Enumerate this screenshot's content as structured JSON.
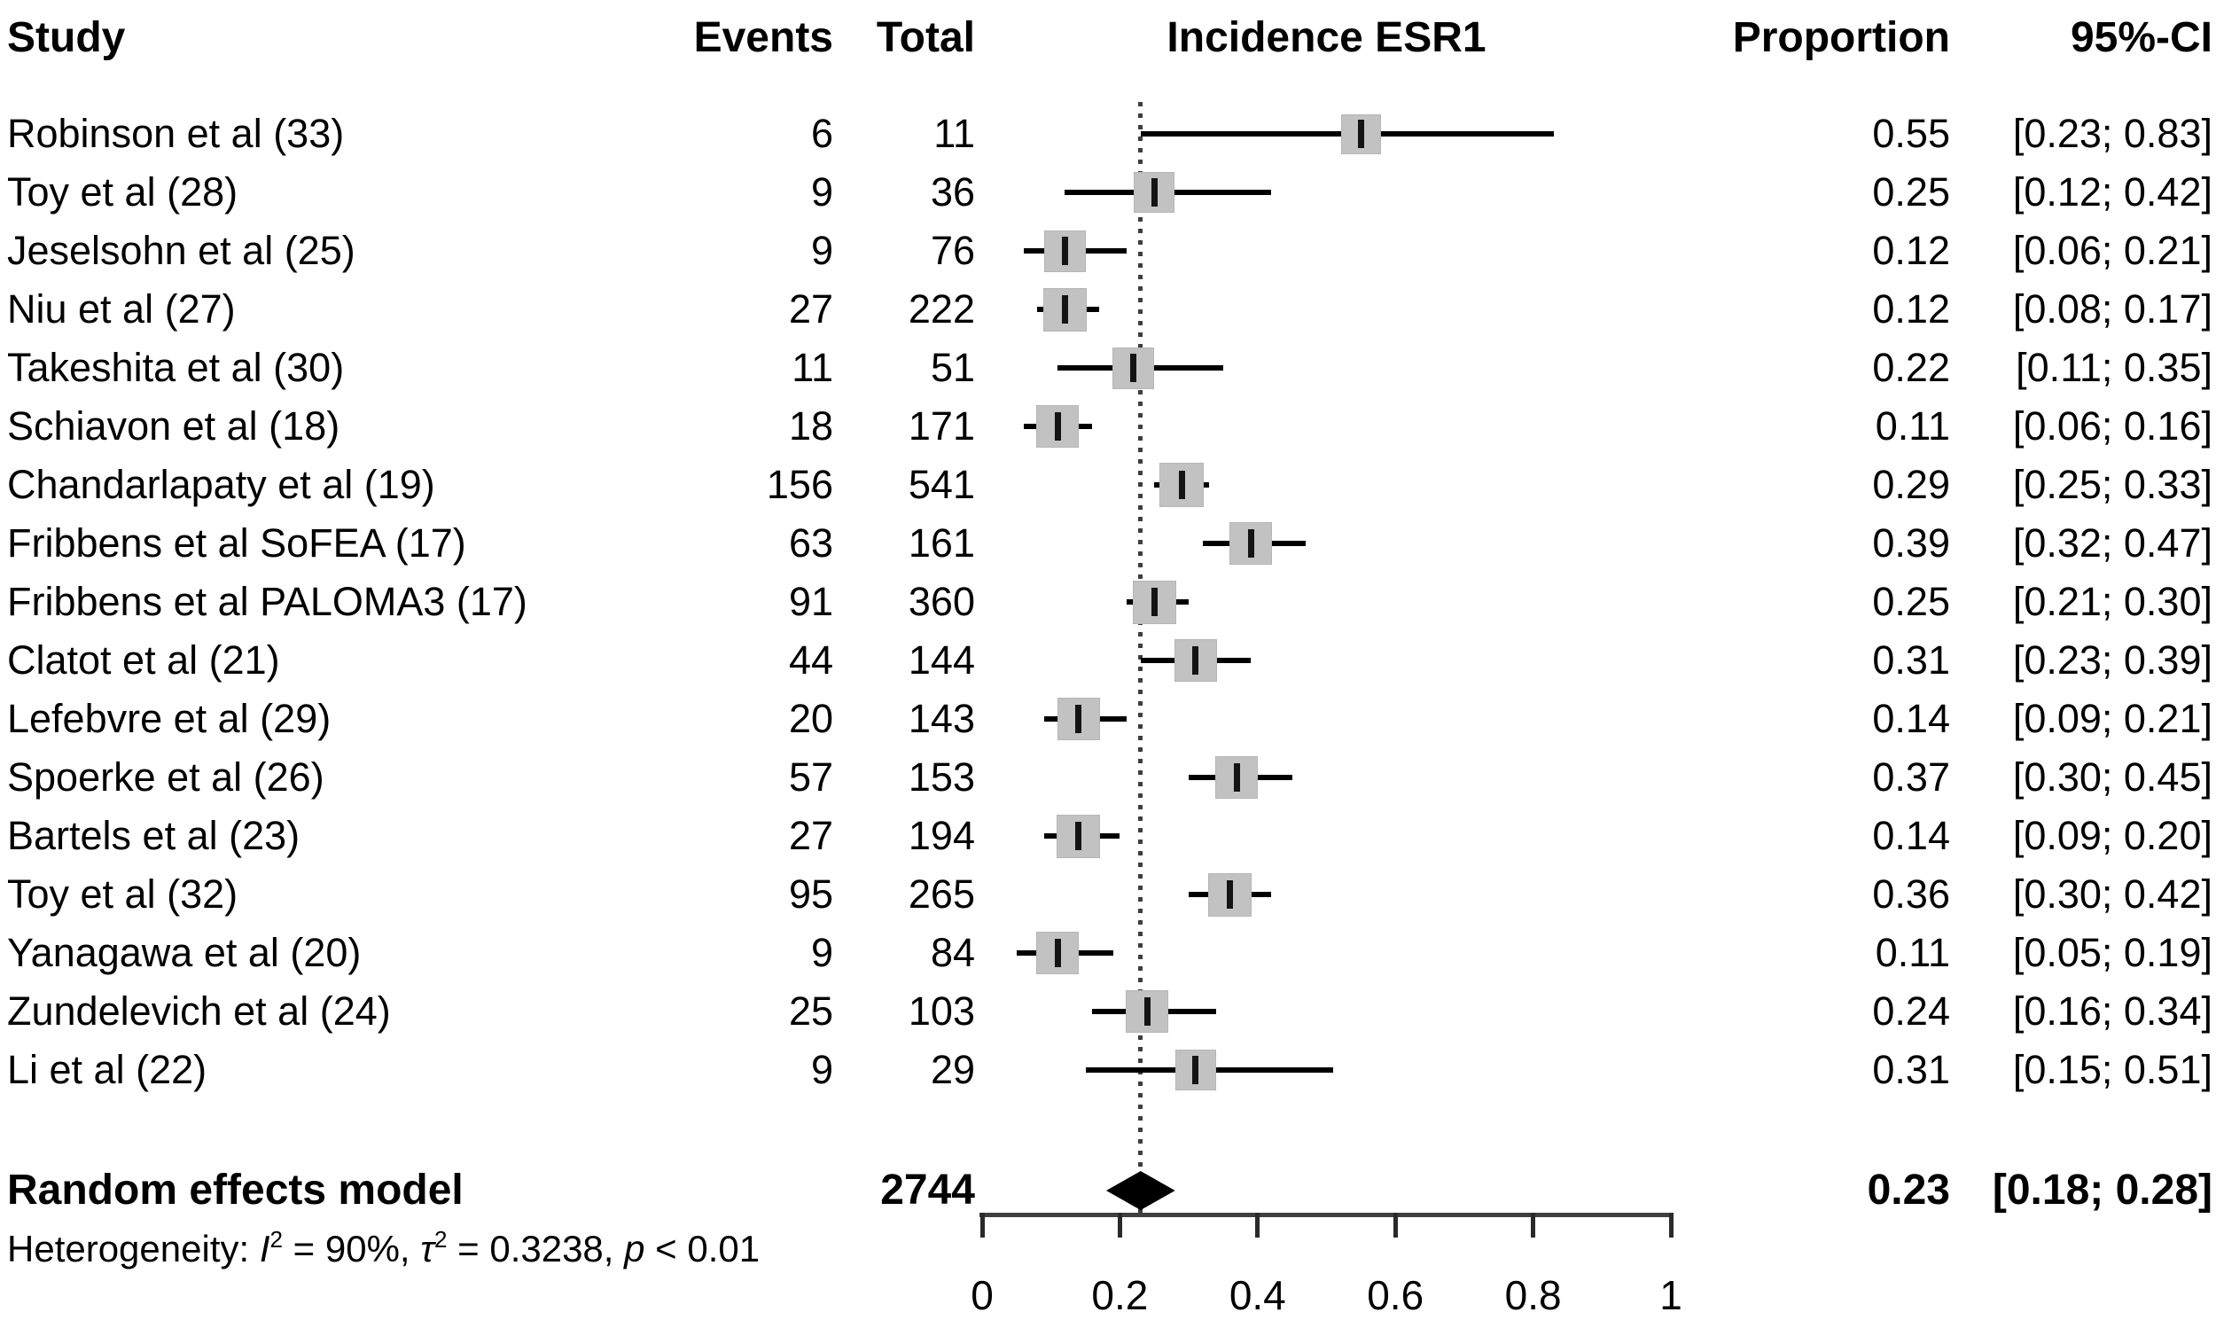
{
  "chart_data": {
    "type": "forest",
    "title": "Incidence ESR1",
    "columns": {
      "study": "Study",
      "events": "Events",
      "total": "Total",
      "plot": "Incidence ESR1",
      "proportion": "Proportion",
      "ci": "95%-CI"
    },
    "xaxis": {
      "xlim": [
        0,
        1
      ],
      "tick_values": [
        0,
        0.2,
        0.4,
        0.6,
        0.8,
        1
      ],
      "tick_labels": [
        "0",
        "0.2",
        "0.4",
        "0.6",
        "0.8",
        "1"
      ]
    },
    "reference_line_value": 0.23,
    "studies": [
      {
        "name": "Robinson et al (33)",
        "events": 6,
        "total": 11,
        "proportion": 0.55,
        "ci_low": 0.23,
        "ci_high": 0.83,
        "proportion_label": "0.55",
        "ci_label": "[0.23; 0.83]"
      },
      {
        "name": "Toy et al (28)",
        "events": 9,
        "total": 36,
        "proportion": 0.25,
        "ci_low": 0.12,
        "ci_high": 0.42,
        "proportion_label": "0.25",
        "ci_label": "[0.12; 0.42]"
      },
      {
        "name": "Jeselsohn et al (25)",
        "events": 9,
        "total": 76,
        "proportion": 0.12,
        "ci_low": 0.06,
        "ci_high": 0.21,
        "proportion_label": "0.12",
        "ci_label": "[0.06; 0.21]"
      },
      {
        "name": "Niu et al (27)",
        "events": 27,
        "total": 222,
        "proportion": 0.12,
        "ci_low": 0.08,
        "ci_high": 0.17,
        "proportion_label": "0.12",
        "ci_label": "[0.08; 0.17]"
      },
      {
        "name": "Takeshita et al (30)",
        "events": 11,
        "total": 51,
        "proportion": 0.22,
        "ci_low": 0.11,
        "ci_high": 0.35,
        "proportion_label": "0.22",
        "ci_label": "[0.11; 0.35]"
      },
      {
        "name": "Schiavon et al (18)",
        "events": 18,
        "total": 171,
        "proportion": 0.11,
        "ci_low": 0.06,
        "ci_high": 0.16,
        "proportion_label": "0.11",
        "ci_label": "[0.06; 0.16]"
      },
      {
        "name": "Chandarlapaty et al (19)",
        "events": 156,
        "total": 541,
        "proportion": 0.29,
        "ci_low": 0.25,
        "ci_high": 0.33,
        "proportion_label": "0.29",
        "ci_label": "[0.25; 0.33]"
      },
      {
        "name": "Fribbens et al SoFEA (17)",
        "events": 63,
        "total": 161,
        "proportion": 0.39,
        "ci_low": 0.32,
        "ci_high": 0.47,
        "proportion_label": "0.39",
        "ci_label": "[0.32; 0.47]"
      },
      {
        "name": "Fribbens et al PALOMA3 (17)",
        "events": 91,
        "total": 360,
        "proportion": 0.25,
        "ci_low": 0.21,
        "ci_high": 0.3,
        "proportion_label": "0.25",
        "ci_label": "[0.21; 0.30]"
      },
      {
        "name": "Clatot et al (21)",
        "events": 44,
        "total": 144,
        "proportion": 0.31,
        "ci_low": 0.23,
        "ci_high": 0.39,
        "proportion_label": "0.31",
        "ci_label": "[0.23; 0.39]"
      },
      {
        "name": "Lefebvre et al (29)",
        "events": 20,
        "total": 143,
        "proportion": 0.14,
        "ci_low": 0.09,
        "ci_high": 0.21,
        "proportion_label": "0.14",
        "ci_label": "[0.09; 0.21]"
      },
      {
        "name": "Spoerke et al (26)",
        "events": 57,
        "total": 153,
        "proportion": 0.37,
        "ci_low": 0.3,
        "ci_high": 0.45,
        "proportion_label": "0.37",
        "ci_label": "[0.30; 0.45]"
      },
      {
        "name": "Bartels et al (23)",
        "events": 27,
        "total": 194,
        "proportion": 0.14,
        "ci_low": 0.09,
        "ci_high": 0.2,
        "proportion_label": "0.14",
        "ci_label": "[0.09; 0.20]"
      },
      {
        "name": "Toy et al (32)",
        "events": 95,
        "total": 265,
        "proportion": 0.36,
        "ci_low": 0.3,
        "ci_high": 0.42,
        "proportion_label": "0.36",
        "ci_label": "[0.30; 0.42]"
      },
      {
        "name": "Yanagawa et al (20)",
        "events": 9,
        "total": 84,
        "proportion": 0.11,
        "ci_low": 0.05,
        "ci_high": 0.19,
        "proportion_label": "0.11",
        "ci_label": "[0.05; 0.19]"
      },
      {
        "name": "Zundelevich et al (24)",
        "events": 25,
        "total": 103,
        "proportion": 0.24,
        "ci_low": 0.16,
        "ci_high": 0.34,
        "proportion_label": "0.24",
        "ci_label": "[0.16; 0.34]"
      },
      {
        "name": "Li et al (22)",
        "events": 9,
        "total": 29,
        "proportion": 0.31,
        "ci_low": 0.15,
        "ci_high": 0.51,
        "proportion_label": "0.31",
        "ci_label": "[0.15; 0.51]"
      }
    ],
    "summary": {
      "name": "Random effects model",
      "total": "2744",
      "proportion": 0.23,
      "ci_low": 0.18,
      "ci_high": 0.28,
      "proportion_label": "0.23",
      "ci_label": "[0.18; 0.28]"
    },
    "heterogeneity": {
      "label": "Heterogeneity: ",
      "i_symbol": "I",
      "i_sup": "2",
      "i_text": " = 90%, ",
      "tau_symbol": "τ",
      "tau_sup": "2",
      "tau_text": " = 0.3238, ",
      "p_symbol": "p",
      "p_text": " < 0.01"
    },
    "colors": {
      "square_fill": "#c2c2c2",
      "ci_line": "#000000",
      "diamond": "#000000",
      "axis": "#3f3f3f"
    }
  }
}
